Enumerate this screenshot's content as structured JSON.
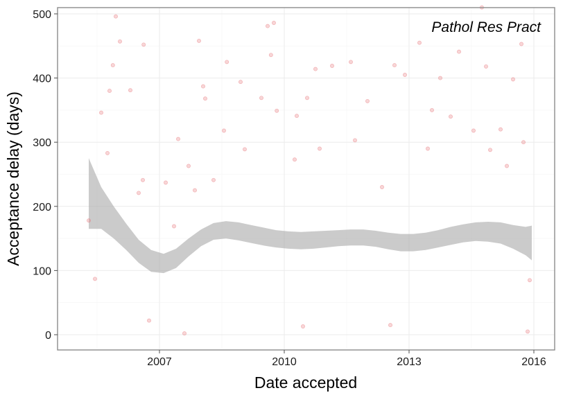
{
  "chart_data": {
    "type": "scatter",
    "annotation": "Pathol Res Pract",
    "xlabel": "Date accepted",
    "ylabel": "Acceptance delay (days)",
    "x_range": [
      2004.7,
      2016.3
    ],
    "ylim": [
      -25,
      512
    ],
    "x_ticks": [
      {
        "value": 2007,
        "label": "2007"
      },
      {
        "value": 2010,
        "label": "2010"
      },
      {
        "value": 2013,
        "label": "2013"
      },
      {
        "value": 2016,
        "label": "2016"
      }
    ],
    "y_ticks": [
      {
        "value": 0,
        "label": "0"
      },
      {
        "value": 100,
        "label": "100"
      },
      {
        "value": 200,
        "label": "200"
      },
      {
        "value": 300,
        "label": "300"
      },
      {
        "value": 400,
        "label": "400"
      },
      {
        "value": 500,
        "label": "500"
      }
    ],
    "grid": true,
    "point_color": "#e8767c",
    "band_color": "#a8a8a8",
    "points": [
      {
        "x": 2005.3,
        "y": 178
      },
      {
        "x": 2005.45,
        "y": 87
      },
      {
        "x": 2005.6,
        "y": 346
      },
      {
        "x": 2005.75,
        "y": 283
      },
      {
        "x": 2005.8,
        "y": 380
      },
      {
        "x": 2005.88,
        "y": 420
      },
      {
        "x": 2005.95,
        "y": 496
      },
      {
        "x": 2006.05,
        "y": 457
      },
      {
        "x": 2006.3,
        "y": 381
      },
      {
        "x": 2006.5,
        "y": 221
      },
      {
        "x": 2006.6,
        "y": 241
      },
      {
        "x": 2006.62,
        "y": 452
      },
      {
        "x": 2006.75,
        "y": 22
      },
      {
        "x": 2007.15,
        "y": 237
      },
      {
        "x": 2007.35,
        "y": 169
      },
      {
        "x": 2007.45,
        "y": 305
      },
      {
        "x": 2007.6,
        "y": 2
      },
      {
        "x": 2007.7,
        "y": 263
      },
      {
        "x": 2007.85,
        "y": 225
      },
      {
        "x": 2007.95,
        "y": 458
      },
      {
        "x": 2008.05,
        "y": 387
      },
      {
        "x": 2008.1,
        "y": 368
      },
      {
        "x": 2008.3,
        "y": 241
      },
      {
        "x": 2008.55,
        "y": 318
      },
      {
        "x": 2008.62,
        "y": 425
      },
      {
        "x": 2008.95,
        "y": 394
      },
      {
        "x": 2009.05,
        "y": 289
      },
      {
        "x": 2009.45,
        "y": 369
      },
      {
        "x": 2009.6,
        "y": 481
      },
      {
        "x": 2009.68,
        "y": 436
      },
      {
        "x": 2009.75,
        "y": 486
      },
      {
        "x": 2009.82,
        "y": 349
      },
      {
        "x": 2010.25,
        "y": 273
      },
      {
        "x": 2010.3,
        "y": 341
      },
      {
        "x": 2010.45,
        "y": 13
      },
      {
        "x": 2010.55,
        "y": 369
      },
      {
        "x": 2010.75,
        "y": 414
      },
      {
        "x": 2010.85,
        "y": 290
      },
      {
        "x": 2011.15,
        "y": 419
      },
      {
        "x": 2011.6,
        "y": 425
      },
      {
        "x": 2011.7,
        "y": 303
      },
      {
        "x": 2012.0,
        "y": 364
      },
      {
        "x": 2012.35,
        "y": 230
      },
      {
        "x": 2012.55,
        "y": 15
      },
      {
        "x": 2012.65,
        "y": 420
      },
      {
        "x": 2012.9,
        "y": 405
      },
      {
        "x": 2013.25,
        "y": 455
      },
      {
        "x": 2013.45,
        "y": 290
      },
      {
        "x": 2013.55,
        "y": 350
      },
      {
        "x": 2013.75,
        "y": 400
      },
      {
        "x": 2014.0,
        "y": 340
      },
      {
        "x": 2014.2,
        "y": 441
      },
      {
        "x": 2014.55,
        "y": 318
      },
      {
        "x": 2014.75,
        "y": 510
      },
      {
        "x": 2014.85,
        "y": 418
      },
      {
        "x": 2014.95,
        "y": 288
      },
      {
        "x": 2015.2,
        "y": 320
      },
      {
        "x": 2015.35,
        "y": 263
      },
      {
        "x": 2015.5,
        "y": 398
      },
      {
        "x": 2015.7,
        "y": 453
      },
      {
        "x": 2015.75,
        "y": 300
      },
      {
        "x": 2015.85,
        "y": 5
      },
      {
        "x": 2015.9,
        "y": 85
      }
    ],
    "smooth": [
      {
        "x": 2005.3,
        "y": 210,
        "lo": 165,
        "hi": 275
      },
      {
        "x": 2005.6,
        "y": 195,
        "lo": 165,
        "hi": 230
      },
      {
        "x": 2005.9,
        "y": 175,
        "lo": 150,
        "hi": 200
      },
      {
        "x": 2006.2,
        "y": 152,
        "lo": 132,
        "hi": 173
      },
      {
        "x": 2006.5,
        "y": 130,
        "lo": 112,
        "hi": 148
      },
      {
        "x": 2006.8,
        "y": 115,
        "lo": 98,
        "hi": 132
      },
      {
        "x": 2007.1,
        "y": 110,
        "lo": 96,
        "hi": 126
      },
      {
        "x": 2007.4,
        "y": 118,
        "lo": 104,
        "hi": 134
      },
      {
        "x": 2007.7,
        "y": 135,
        "lo": 122,
        "hi": 150
      },
      {
        "x": 2008.0,
        "y": 150,
        "lo": 138,
        "hi": 164
      },
      {
        "x": 2008.3,
        "y": 160,
        "lo": 148,
        "hi": 174
      },
      {
        "x": 2008.6,
        "y": 162,
        "lo": 150,
        "hi": 177
      },
      {
        "x": 2008.9,
        "y": 160,
        "lo": 147,
        "hi": 175
      },
      {
        "x": 2009.2,
        "y": 156,
        "lo": 143,
        "hi": 171
      },
      {
        "x": 2009.5,
        "y": 152,
        "lo": 139,
        "hi": 167
      },
      {
        "x": 2009.8,
        "y": 149,
        "lo": 136,
        "hi": 163
      },
      {
        "x": 2010.1,
        "y": 147,
        "lo": 134,
        "hi": 161
      },
      {
        "x": 2010.4,
        "y": 146,
        "lo": 133,
        "hi": 160
      },
      {
        "x": 2010.7,
        "y": 147,
        "lo": 134,
        "hi": 161
      },
      {
        "x": 2011.0,
        "y": 149,
        "lo": 136,
        "hi": 162
      },
      {
        "x": 2011.3,
        "y": 150,
        "lo": 138,
        "hi": 163
      },
      {
        "x": 2011.6,
        "y": 151,
        "lo": 139,
        "hi": 164
      },
      {
        "x": 2011.9,
        "y": 151,
        "lo": 139,
        "hi": 164
      },
      {
        "x": 2012.2,
        "y": 149,
        "lo": 137,
        "hi": 162
      },
      {
        "x": 2012.5,
        "y": 146,
        "lo": 133,
        "hi": 159
      },
      {
        "x": 2012.8,
        "y": 143,
        "lo": 130,
        "hi": 157
      },
      {
        "x": 2013.1,
        "y": 143,
        "lo": 130,
        "hi": 157
      },
      {
        "x": 2013.4,
        "y": 145,
        "lo": 132,
        "hi": 159
      },
      {
        "x": 2013.7,
        "y": 149,
        "lo": 136,
        "hi": 163
      },
      {
        "x": 2014.0,
        "y": 154,
        "lo": 140,
        "hi": 168
      },
      {
        "x": 2014.3,
        "y": 158,
        "lo": 144,
        "hi": 172
      },
      {
        "x": 2014.6,
        "y": 160,
        "lo": 146,
        "hi": 175
      },
      {
        "x": 2014.9,
        "y": 160,
        "lo": 145,
        "hi": 176
      },
      {
        "x": 2015.2,
        "y": 158,
        "lo": 142,
        "hi": 175
      },
      {
        "x": 2015.5,
        "y": 152,
        "lo": 134,
        "hi": 171
      },
      {
        "x": 2015.8,
        "y": 146,
        "lo": 124,
        "hi": 168
      },
      {
        "x": 2015.95,
        "y": 143,
        "lo": 116,
        "hi": 170
      }
    ]
  }
}
